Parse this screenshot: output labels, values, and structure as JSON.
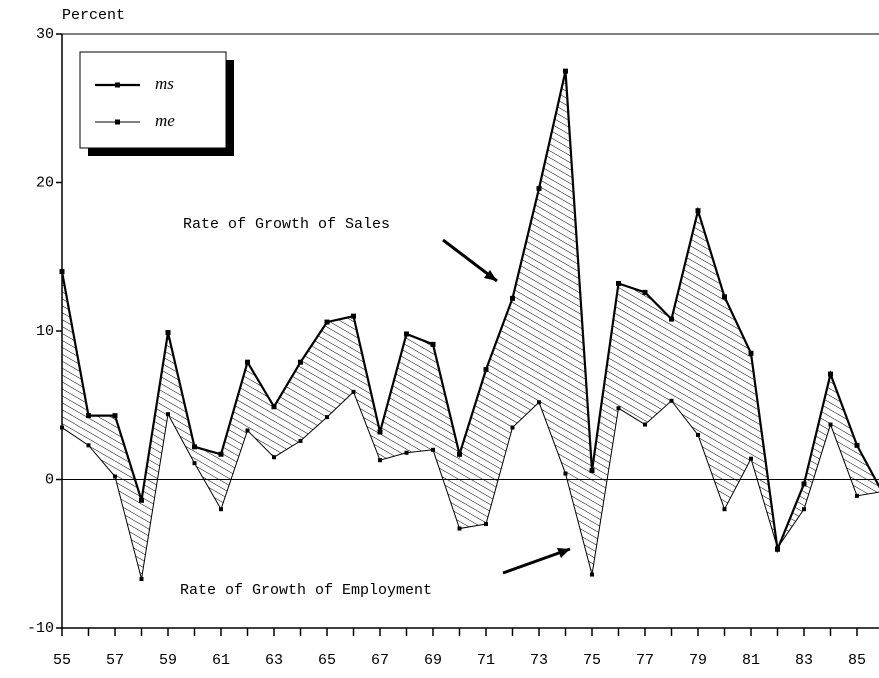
{
  "chart_data": {
    "type": "line",
    "ylabel": "Percent",
    "x": [
      55,
      56,
      57,
      58,
      59,
      60,
      61,
      62,
      63,
      64,
      65,
      66,
      67,
      68,
      69,
      70,
      71,
      72,
      73,
      74,
      75,
      76,
      77,
      78,
      79,
      80,
      81,
      82,
      83,
      84,
      85,
      86
    ],
    "series": [
      {
        "name": "ms",
        "color": "#000000",
        "values": [
          14.0,
          4.3,
          4.3,
          -1.4,
          9.9,
          2.2,
          1.7,
          7.9,
          4.9,
          7.9,
          10.6,
          11.0,
          3.2,
          9.8,
          9.1,
          1.7,
          7.4,
          12.2,
          19.6,
          27.5,
          0.6,
          13.2,
          12.6,
          10.8,
          18.1,
          12.3,
          8.5,
          -4.7,
          -0.3,
          7.1,
          2.3,
          -1.0
        ]
      },
      {
        "name": "me",
        "color": "#000000",
        "values": [
          3.5,
          2.3,
          0.2,
          -6.7,
          4.4,
          1.1,
          -2.0,
          3.3,
          1.5,
          2.6,
          4.2,
          5.9,
          1.3,
          1.8,
          2.0,
          -3.3,
          -3.0,
          3.5,
          5.2,
          0.4,
          -6.4,
          4.8,
          3.7,
          5.3,
          3.0,
          -2.0,
          1.4,
          -4.6,
          -2.0,
          3.7,
          -1.1,
          -0.8
        ]
      }
    ],
    "annotations": [
      "Rate of Growth of Sales",
      "Rate of Growth of Employment"
    ],
    "xlim": [
      55,
      86
    ],
    "xticks": [
      55,
      57,
      59,
      61,
      63,
      65,
      67,
      69,
      71,
      73,
      75,
      77,
      79,
      81,
      83,
      85
    ],
    "xminor": [
      56,
      58,
      60,
      62,
      64,
      66,
      68,
      70,
      72,
      74,
      76,
      78,
      80,
      82,
      84
    ],
    "ylim": [
      -10,
      30
    ],
    "yticks": [
      -10,
      0,
      10,
      20,
      30
    ],
    "hatch": true
  }
}
